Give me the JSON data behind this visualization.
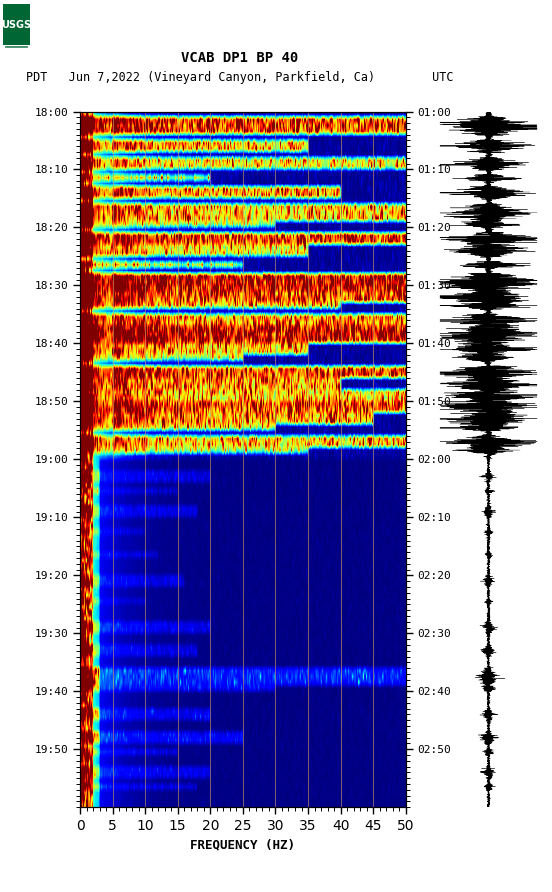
{
  "title_line1": "VCAB DP1 BP 40",
  "title_line2": "PDT   Jun 7,2022 (Vineyard Canyon, Parkfield, Ca)        UTC",
  "left_times": [
    "18:00",
    "18:10",
    "18:20",
    "18:30",
    "18:40",
    "18:50",
    "19:00",
    "19:10",
    "19:20",
    "19:30",
    "19:40",
    "19:50"
  ],
  "right_times": [
    "01:00",
    "01:10",
    "01:20",
    "01:30",
    "01:40",
    "01:50",
    "02:00",
    "02:10",
    "02:20",
    "02:30",
    "02:40",
    "02:50"
  ],
  "freq_min": 0,
  "freq_max": 50,
  "freq_ticks": [
    0,
    5,
    10,
    15,
    20,
    25,
    30,
    35,
    40,
    45,
    50
  ],
  "xlabel": "FREQUENCY (HZ)",
  "colormap": "jet",
  "bg_color": "#ffffff",
  "fig_width": 5.52,
  "fig_height": 8.92,
  "dpi": 100,
  "n_time_rows": 120,
  "n_freq_cols": 500,
  "vertical_lines_hz": [
    5,
    10,
    15,
    20,
    25,
    30,
    35,
    40,
    45
  ],
  "vline_color": "#c8a060",
  "vline_alpha": 0.85,
  "n_time_labels": 12,
  "waveform_amp_first_half": 3.0,
  "waveform_amp_second_half": 1.2
}
